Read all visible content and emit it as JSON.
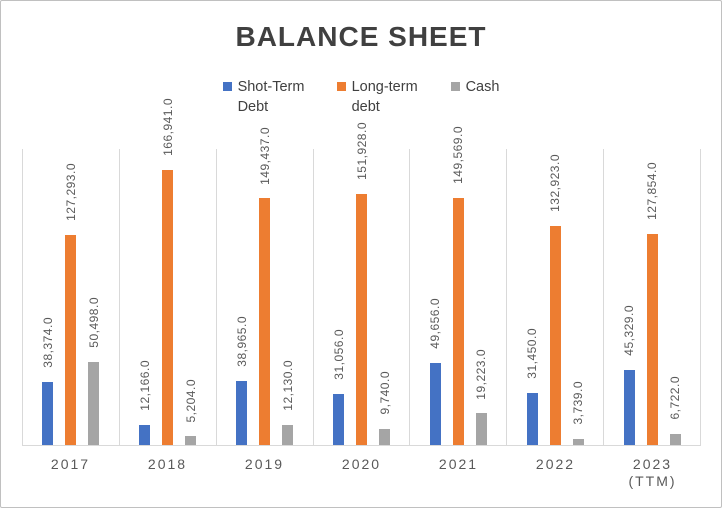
{
  "chart_data": {
    "type": "bar",
    "title": "BALANCE SHEET",
    "categories": [
      "2017",
      "2018",
      "2019",
      "2020",
      "2021",
      "2022",
      "2023 (TTM)"
    ],
    "series": [
      {
        "name": "Shot-Term Debt",
        "color": "#4472C4",
        "values": [
          38374.0,
          12166.0,
          38965.0,
          31056.0,
          49656.0,
          31450.0,
          45329.0
        ]
      },
      {
        "name": "Long-term debt",
        "color": "#ED7D31",
        "values": [
          127293.0,
          166941.0,
          149437.0,
          151928.0,
          149569.0,
          132923.0,
          127854.0
        ]
      },
      {
        "name": "Cash",
        "color": "#A5A5A5",
        "values": [
          50498.0,
          5204.0,
          12130.0,
          9740.0,
          19223.0,
          3739.0,
          6722.0
        ]
      }
    ],
    "ylim": [
      0,
      180000
    ],
    "yaxis_visible": false,
    "grid": "vertical-separators-only",
    "legend_position": "top",
    "data_label_format": "#,##0.0",
    "data_label_rotation": 90,
    "colors": {
      "title": "#404040",
      "legend_text": "#404040",
      "axis_labels": "#595959",
      "data_labels": "#595959",
      "gridlines": "#D9D9D9",
      "frame_border": "#C0C0C0",
      "background": "#FFFFFF"
    }
  }
}
